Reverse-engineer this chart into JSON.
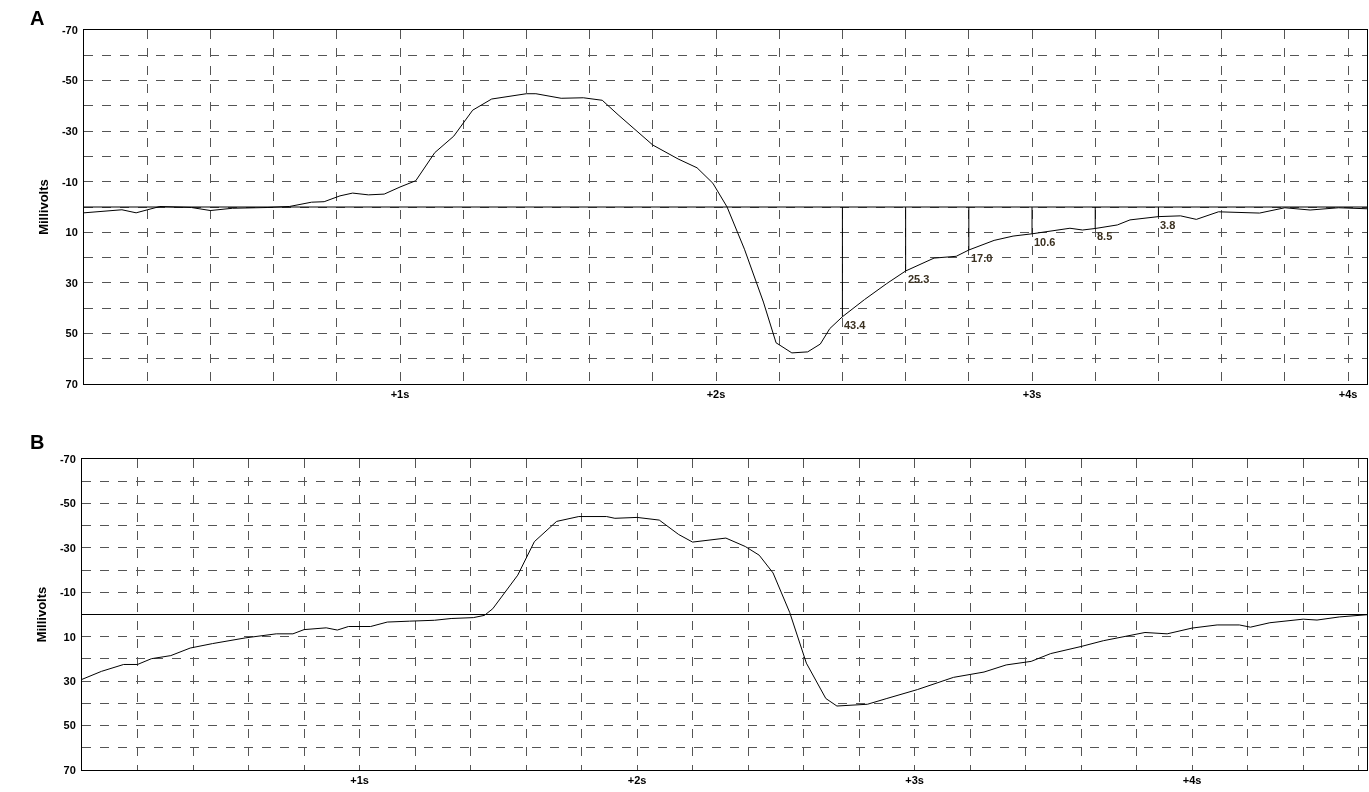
{
  "chart_data": [
    {
      "type": "line",
      "title": "A",
      "ylabel": "Millivolts",
      "xlim": [
        0,
        4.06
      ],
      "ylim": [
        70,
        -70
      ],
      "xticks": [
        {
          "value": 0.2,
          "label": null
        },
        {
          "value": 0.4,
          "label": null
        },
        {
          "value": 0.6,
          "label": null
        },
        {
          "value": 0.8,
          "label": null
        },
        {
          "value": 1,
          "label": "+1s"
        },
        {
          "value": 1.2,
          "label": null
        },
        {
          "value": 1.4,
          "label": null
        },
        {
          "value": 1.6,
          "label": null
        },
        {
          "value": 1.8,
          "label": null
        },
        {
          "value": 2,
          "label": "+2s"
        },
        {
          "value": 2.2,
          "label": null
        },
        {
          "value": 2.4,
          "label": null
        },
        {
          "value": 2.6,
          "label": null
        },
        {
          "value": 2.8,
          "label": null
        },
        {
          "value": 3,
          "label": "+3s"
        },
        {
          "value": 3.2,
          "label": null
        },
        {
          "value": 3.4,
          "label": null
        },
        {
          "value": 3.6,
          "label": null
        },
        {
          "value": 3.8,
          "label": null
        },
        {
          "value": 4,
          "label": "+4s"
        }
      ],
      "yticks": [
        -70,
        {
          "value": -60,
          "label": null
        },
        -50,
        {
          "value": -40,
          "label": null
        },
        -30,
        {
          "value": -20,
          "label": null
        },
        -10,
        {
          "value": 0,
          "label": null
        },
        10,
        {
          "value": 20,
          "label": null
        },
        30,
        {
          "value": 40,
          "label": null
        },
        50,
        {
          "value": 60,
          "label": null
        },
        70
      ],
      "grid": true,
      "ref_lines": [
        {
          "axis": "y",
          "value": 0,
          "label": null
        }
      ],
      "x": [
        0,
        0.12,
        0.165,
        0.24,
        0.34,
        0.4,
        0.47,
        0.58,
        0.65,
        0.72,
        0.76,
        0.81,
        0.85,
        0.9,
        0.95,
        1,
        1.05,
        1.11,
        1.17,
        1.23,
        1.29,
        1.4,
        1.43,
        1.51,
        1.58,
        1.64,
        1.69,
        1.8,
        1.88,
        1.94,
        1.99,
        2.035,
        2.09,
        2.15,
        2.19,
        2.24,
        2.29,
        2.33,
        2.36,
        2.4,
        2.47,
        2.54,
        2.6,
        2.69,
        2.76,
        2.8,
        2.88,
        2.94,
        3,
        3.12,
        3.16,
        3.2,
        3.27,
        3.31,
        3.4,
        3.47,
        3.52,
        3.59,
        3.72,
        3.8,
        3.88,
        3.97,
        4.06
      ],
      "series": [
        {
          "color": "#000000",
          "values": [
            2.3,
            1.1,
            2.3,
            -0.2,
            0.2,
            1.4,
            0.5,
            0.2,
            -0.2,
            -1.9,
            -2.1,
            -4.4,
            -5.5,
            -4.8,
            -5.1,
            -7.9,
            -10.4,
            -21.5,
            -28,
            -38.3,
            -42.7,
            -44.8,
            -44.8,
            -43,
            -43.2,
            -42.2,
            -36.5,
            -24.5,
            -19,
            -15.5,
            -9.4,
            0,
            16.7,
            37.6,
            53.7,
            57.7,
            57.3,
            54.2,
            48.1,
            43.4,
            36.6,
            30.3,
            25.3,
            20.2,
            19.5,
            17,
            13.2,
            11.5,
            10.6,
            8.4,
            9.1,
            8.5,
            7.1,
            5.1,
            3.8,
            3.5,
            4.9,
            1.9,
            2.4,
            0.3,
            1.2,
            0.3,
            0.7
          ]
        }
      ],
      "annotations": [
        {
          "text": "43.4",
          "x": 2.4,
          "y": 43.4
        },
        {
          "text": "25.3",
          "x": 2.6,
          "y": 25.3
        },
        {
          "text": "17.0",
          "x": 2.8,
          "y": 17.0
        },
        {
          "text": "10.6",
          "x": 3.0,
          "y": 10.6
        },
        {
          "text": "8.5",
          "x": 3.2,
          "y": 8.5
        },
        {
          "text": "3.8",
          "x": 3.4,
          "y": 3.8
        }
      ]
    },
    {
      "type": "line",
      "title": "B",
      "ylabel": "Millivolts",
      "xlim": [
        0,
        4.63
      ],
      "ylim": [
        70,
        -70
      ],
      "xticks": [
        {
          "value": 0.2,
          "label": null
        },
        {
          "value": 0.4,
          "label": null
        },
        {
          "value": 0.6,
          "label": null
        },
        {
          "value": 0.8,
          "label": null
        },
        {
          "value": 1,
          "label": "+1s"
        },
        {
          "value": 1.2,
          "label": null
        },
        {
          "value": 1.4,
          "label": null
        },
        {
          "value": 1.6,
          "label": null
        },
        {
          "value": 1.8,
          "label": null
        },
        {
          "value": 2,
          "label": "+2s"
        },
        {
          "value": 2.2,
          "label": null
        },
        {
          "value": 2.4,
          "label": null
        },
        {
          "value": 2.6,
          "label": null
        },
        {
          "value": 2.8,
          "label": null
        },
        {
          "value": 3,
          "label": "+3s"
        },
        {
          "value": 3.2,
          "label": null
        },
        {
          "value": 3.4,
          "label": null
        },
        {
          "value": 3.6,
          "label": null
        },
        {
          "value": 3.8,
          "label": null
        },
        {
          "value": 4,
          "label": "+4s"
        },
        {
          "value": 4.2,
          "label": null
        },
        {
          "value": 4.4,
          "label": null
        },
        {
          "value": 4.6,
          "label": null
        }
      ],
      "yticks": [
        -70,
        {
          "value": -60,
          "label": null
        },
        -50,
        {
          "value": -40,
          "label": null
        },
        -30,
        {
          "value": -20,
          "label": null
        },
        -10,
        {
          "value": 0,
          "label": null
        },
        10,
        {
          "value": 20,
          "label": null
        },
        30,
        {
          "value": 40,
          "label": null
        },
        50,
        {
          "value": 60,
          "label": null
        },
        70
      ],
      "grid": true,
      "ref_lines": [
        {
          "axis": "y",
          "value": 0,
          "label": null
        }
      ],
      "x": [
        0,
        0.07,
        0.15,
        0.2,
        0.25,
        0.32,
        0.39,
        0.47,
        0.59,
        0.7,
        0.76,
        0.8,
        0.88,
        0.92,
        0.96,
        1.04,
        1.1,
        1.18,
        1.27,
        1.33,
        1.41,
        1.45,
        1.48,
        1.57,
        1.63,
        1.71,
        1.79,
        1.89,
        1.92,
        2,
        2.08,
        2.15,
        2.2,
        2.32,
        2.39,
        2.44,
        2.49,
        2.55,
        2.61,
        2.68,
        2.72,
        2.83,
        2.9,
        3.01,
        3.14,
        3.25,
        3.33,
        3.42,
        3.49,
        3.6,
        3.68,
        3.83,
        3.91,
        4,
        4.09,
        4.17,
        4.21,
        4.28,
        4.4,
        4.45,
        4.53,
        4.63
      ],
      "series": [
        {
          "color": "#000000",
          "values": [
            29.2,
            25.6,
            22.5,
            22.5,
            19.9,
            18.5,
            15.1,
            13.1,
            10.5,
            8.7,
            8.7,
            6.8,
            6,
            7,
            5.4,
            5.4,
            3.4,
            3,
            2.6,
            1.8,
            1.4,
            0.4,
            -2.6,
            -17.7,
            -32.8,
            -41.9,
            -44.1,
            -44.1,
            -43.3,
            -43.7,
            -42.5,
            -36,
            -32.6,
            -34.4,
            -30.6,
            -26.7,
            -18.7,
            -0.9,
            21.9,
            37.8,
            41.2,
            40.4,
            37.8,
            33.8,
            28.3,
            25.9,
            22.7,
            21.1,
            17.6,
            14.4,
            11.8,
            8.1,
            8.7,
            6.1,
            4.7,
            4.7,
            5.7,
            3.7,
            2.1,
            2.5,
            1.1,
            0.1
          ]
        }
      ]
    }
  ]
}
